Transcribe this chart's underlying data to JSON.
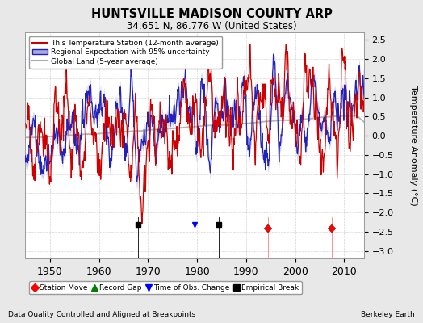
{
  "title": "HUNTSVILLE MADISON COUNTY ARP",
  "subtitle": "34.651 N, 86.776 W (United States)",
  "ylabel": "Temperature Anomaly (°C)",
  "xlabel_footer": "Data Quality Controlled and Aligned at Breakpoints",
  "footer_right": "Berkeley Earth",
  "year_start": 1945,
  "year_end": 2015,
  "ylim": [
    -3.2,
    2.7
  ],
  "yticks": [
    -3,
    -2.5,
    -2,
    -1.5,
    -1,
    -0.5,
    0,
    0.5,
    1,
    1.5,
    2,
    2.5
  ],
  "xticks": [
    1950,
    1960,
    1970,
    1980,
    1990,
    2000,
    2010
  ],
  "background_color": "#e8e8e8",
  "plot_bg_color": "#ffffff",
  "station_moves": [
    1994.5,
    2007.5
  ],
  "empirical_breaks": [
    1968.0,
    1984.5
  ],
  "time_obs_changes": [
    1979.5
  ],
  "record_gaps": [],
  "marker_y": -2.43,
  "legend_labels": [
    "This Temperature Station (12-month average)",
    "Regional Expectation with 95% uncertainty",
    "Global Land (5-year average)"
  ],
  "legend_colors": [
    "#cc0000",
    "#2222bb",
    "#aaaaaa"
  ],
  "uncertainty_color": "#aaaadd",
  "seed": 17
}
